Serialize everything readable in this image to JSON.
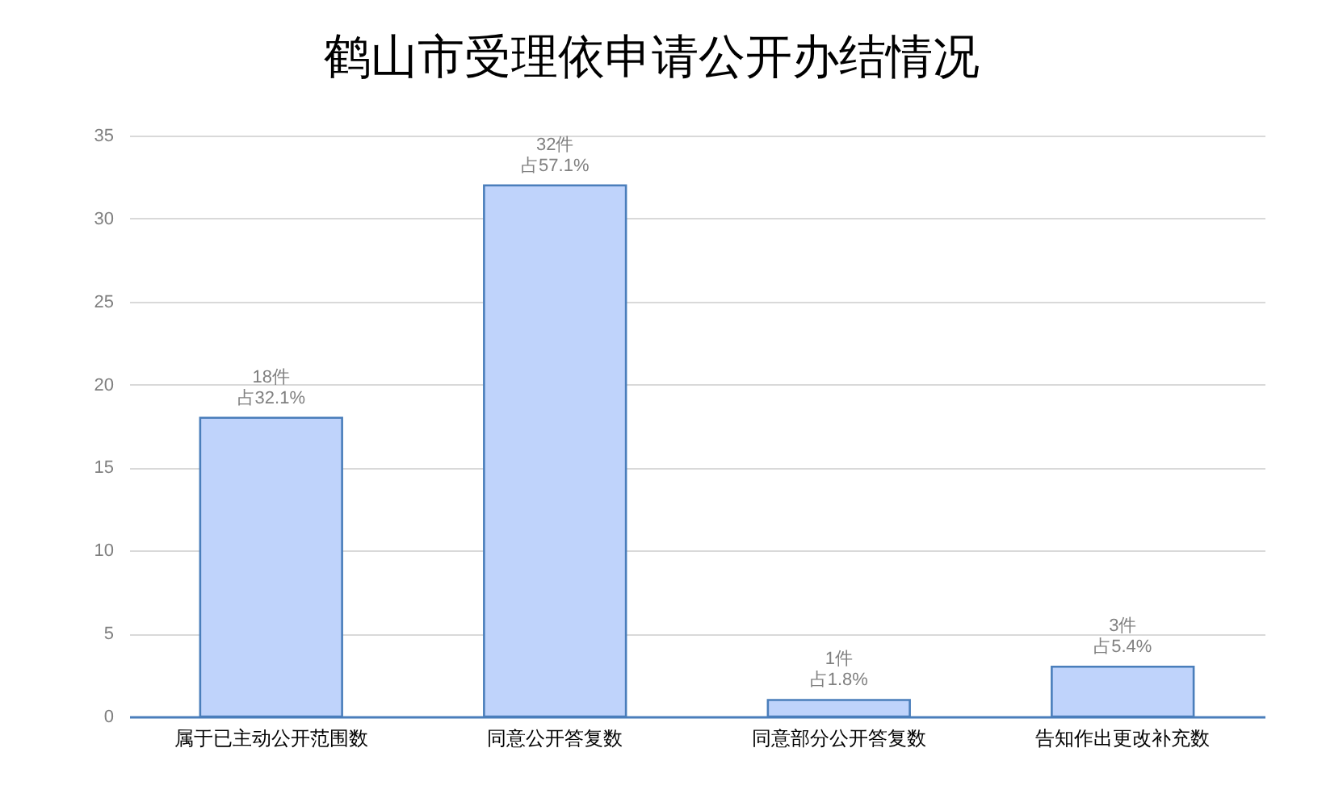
{
  "chart_data": {
    "type": "bar",
    "title": "鹤山市受理依申请公开办结情况",
    "categories": [
      "属于已主动公开范围数",
      "同意公开答复数",
      "同意部分公开答复数",
      "告知作出更改补充数"
    ],
    "values": [
      18,
      32,
      1,
      3
    ],
    "value_labels": [
      "18件占32.1%",
      "32件占57.1%",
      "1件占1.8%",
      "3件占5.4%"
    ],
    "color": "#bfd3fb",
    "ylim": [
      0,
      35
    ],
    "yticks": [
      0,
      5,
      10,
      15,
      20,
      25,
      30,
      35
    ],
    "grid": "y"
  }
}
